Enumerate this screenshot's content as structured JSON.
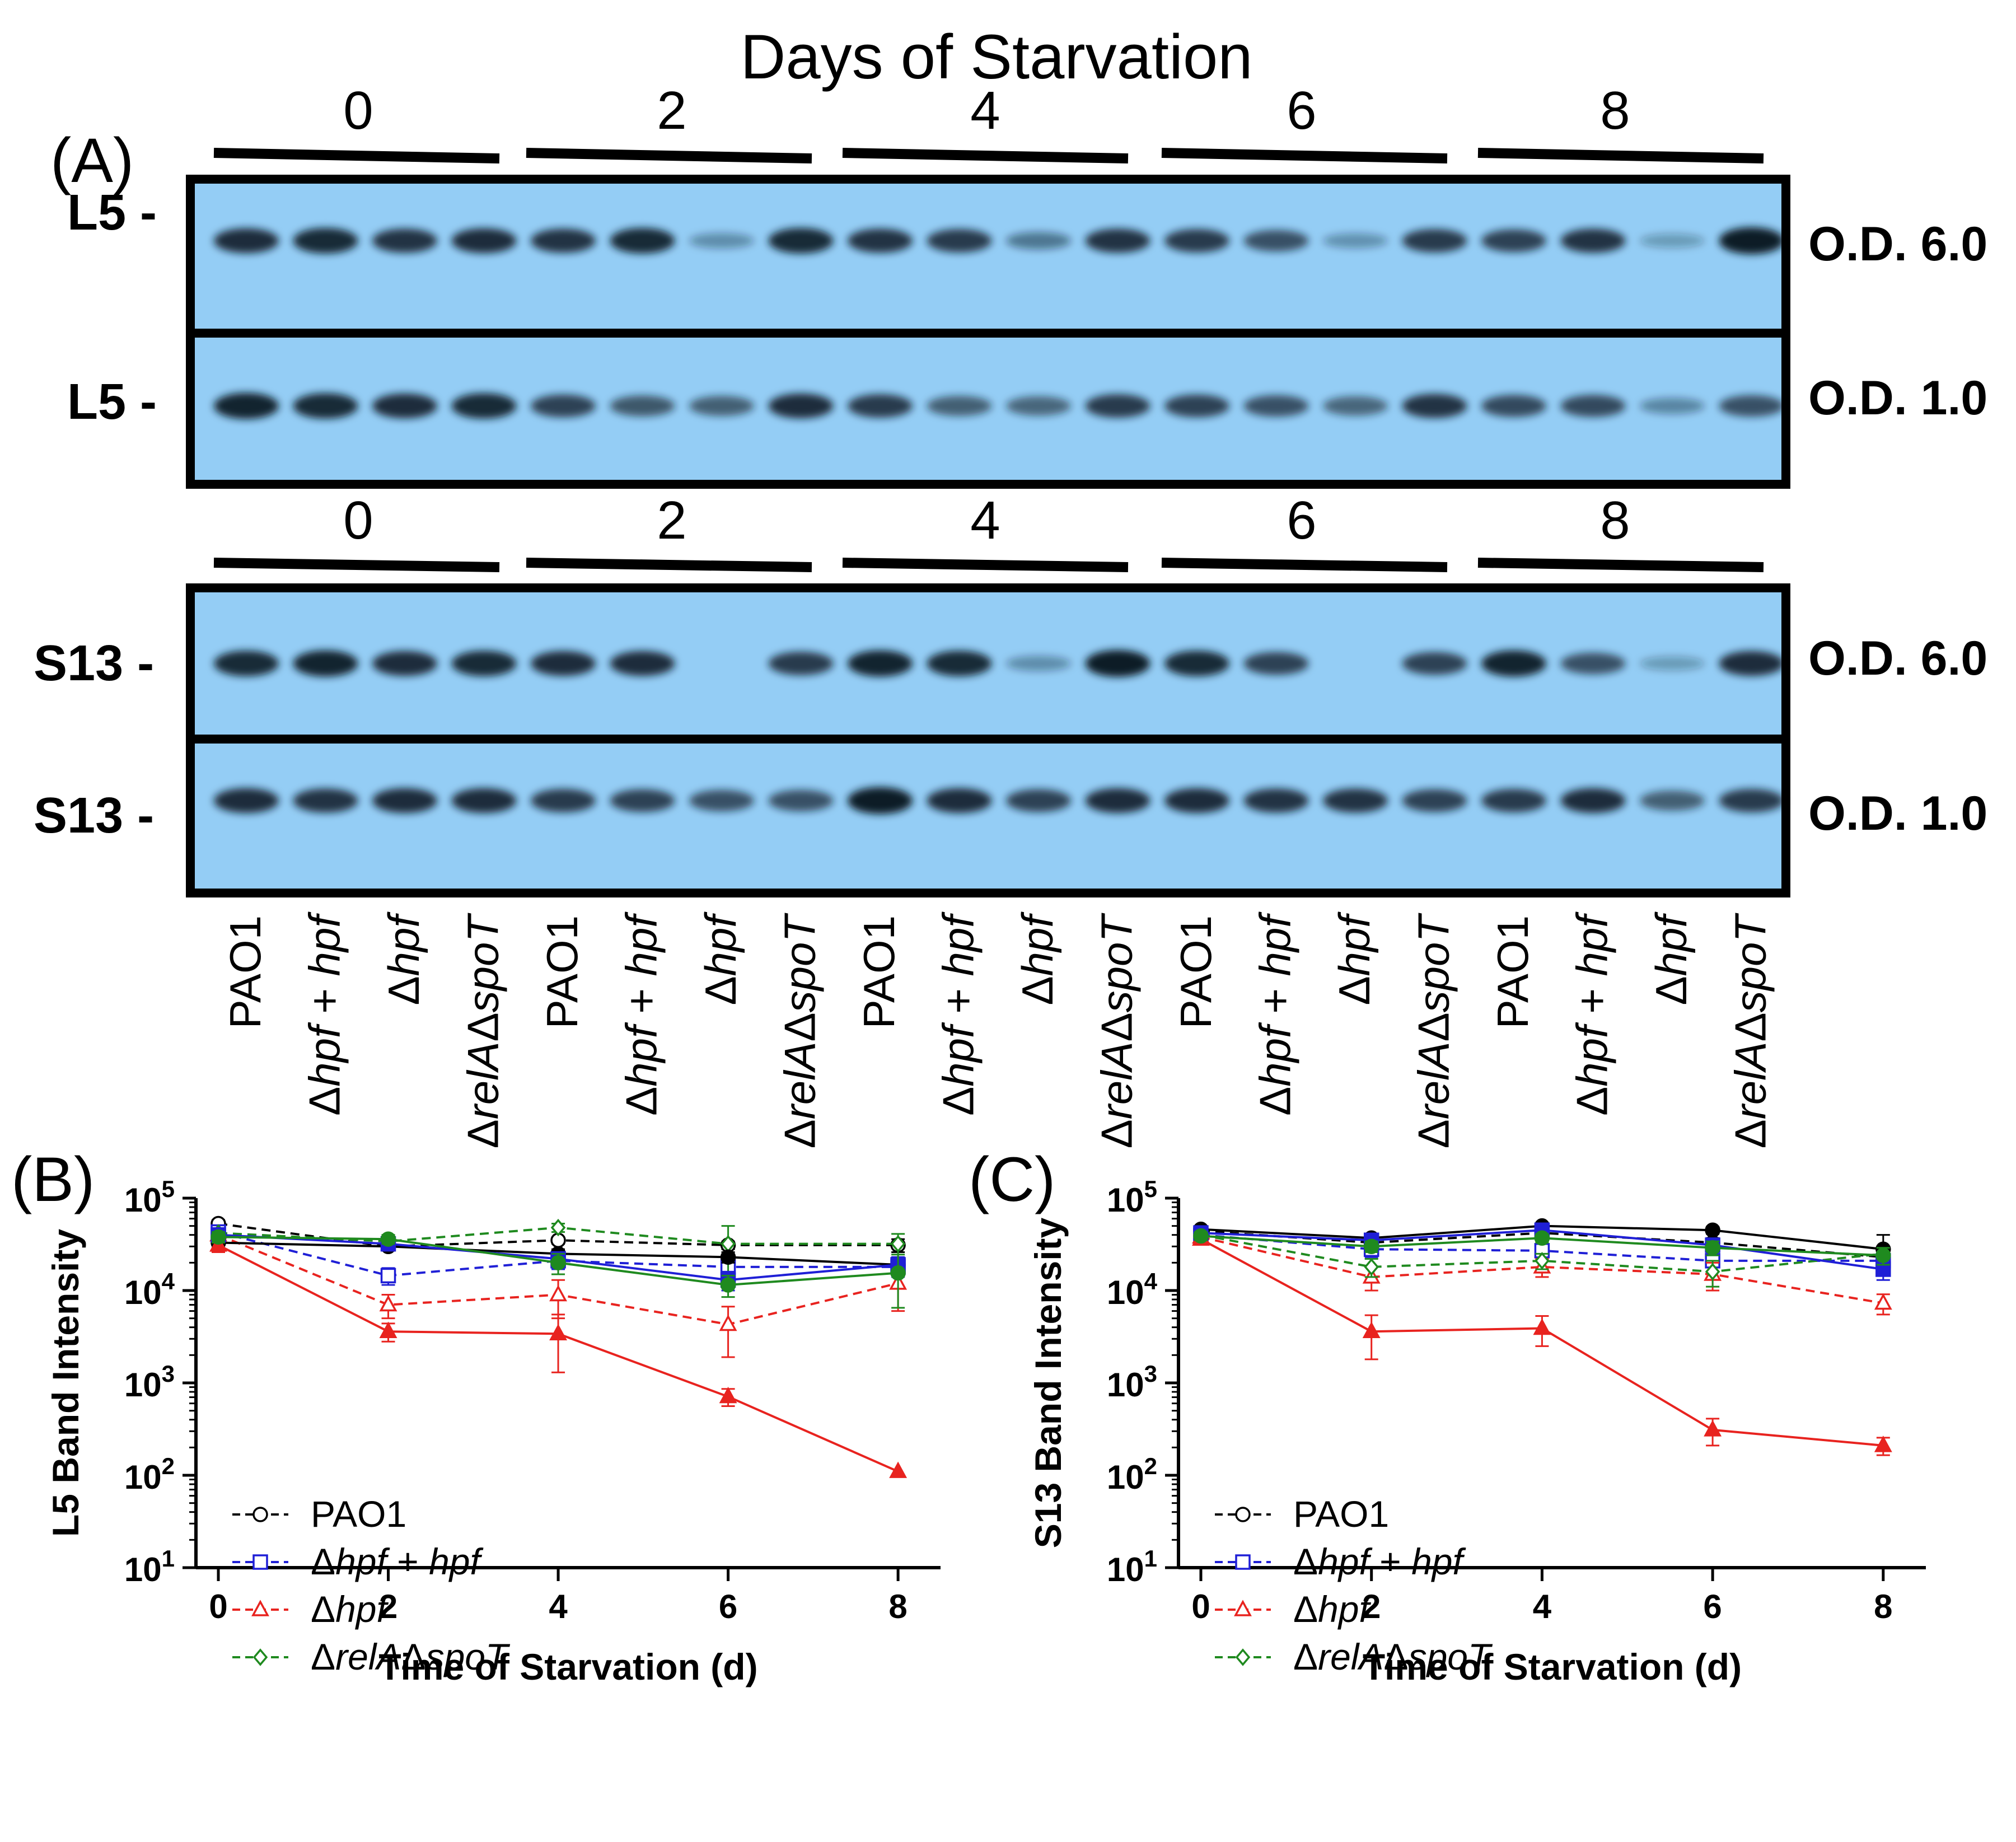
{
  "panel_a": {
    "label": "(A)",
    "title": "Days of Starvation",
    "days": [
      "0",
      "2",
      "4",
      "6",
      "8"
    ],
    "rows": [
      {
        "protein": "L5 -",
        "condition": "O.D. 6.0"
      },
      {
        "protein": "L5 -",
        "condition": "O.D. 1.0"
      },
      {
        "protein": "S13 -",
        "condition": "O.D. 6.0"
      },
      {
        "protein": "S13 -",
        "condition": "O.D. 1.0"
      }
    ],
    "lanes": [
      [
        {
          "t": "PAO1",
          "i": false
        }
      ],
      [
        {
          "t": "Δ",
          "i": false
        },
        {
          "t": "hpf",
          "i": true
        },
        {
          "t": " + ",
          "i": false
        },
        {
          "t": "hpf",
          "i": true
        }
      ],
      [
        {
          "t": "Δ",
          "i": false
        },
        {
          "t": "hpf",
          "i": true
        }
      ],
      [
        {
          "t": "Δ",
          "i": false
        },
        {
          "t": "relA",
          "i": true
        },
        {
          "t": "Δ",
          "i": false
        },
        {
          "t": "spoT",
          "i": true
        }
      ]
    ],
    "band_intensity": [
      [
        0.85,
        0.9,
        0.8,
        0.85,
        0.8,
        0.9,
        0.15,
        0.9,
        0.8,
        0.75,
        0.3,
        0.8,
        0.75,
        0.6,
        0.12,
        0.75,
        0.7,
        0.8,
        0.05,
        1.0
      ],
      [
        0.95,
        0.9,
        0.85,
        0.9,
        0.7,
        0.55,
        0.5,
        0.85,
        0.75,
        0.5,
        0.45,
        0.75,
        0.7,
        0.6,
        0.45,
        0.8,
        0.65,
        0.65,
        0.2,
        0.6
      ],
      [
        0.9,
        0.95,
        0.85,
        0.9,
        0.85,
        0.85,
        0.0,
        0.75,
        0.95,
        0.9,
        0.15,
        1.0,
        0.9,
        0.7,
        0.0,
        0.7,
        0.95,
        0.6,
        0.05,
        0.85
      ],
      [
        0.85,
        0.8,
        0.85,
        0.85,
        0.75,
        0.7,
        0.6,
        0.6,
        1.0,
        0.85,
        0.7,
        0.85,
        0.85,
        0.8,
        0.8,
        0.7,
        0.75,
        0.85,
        0.5,
        0.75
      ]
    ]
  },
  "legend_entries": [
    {
      "parts": [
        {
          "t": "PAO1",
          "i": false
        }
      ]
    },
    {
      "parts": [
        {
          "t": "Δ",
          "i": false
        },
        {
          "t": "hpf",
          "i": true
        },
        {
          "t": " + ",
          "i": false
        },
        {
          "t": "hpf",
          "i": true
        }
      ]
    },
    {
      "parts": [
        {
          "t": "Δ",
          "i": false
        },
        {
          "t": "hpf",
          "i": true
        }
      ]
    },
    {
      "parts": [
        {
          "t": "Δ",
          "i": false
        },
        {
          "t": "relA",
          "i": true
        },
        {
          "t": "Δ",
          "i": false
        },
        {
          "t": "spoT",
          "i": true
        }
      ]
    }
  ],
  "colors": {
    "blot_bg": "#94cdf5",
    "band": "#0d1b26",
    "PAO1": "#000000",
    "hpf_complement": "#1f1fd6",
    "delta_hpf": "#e8231f",
    "relA_spoT": "#1f8a1f"
  },
  "chart_data": [
    {
      "panel": "(B)",
      "type": "line",
      "yscale": "log",
      "xlabel": "Time of Starvation (d)",
      "ylabel": "L5  Band Intensity",
      "x": [
        0,
        2,
        4,
        6,
        8
      ],
      "xticks": [
        "0",
        "2",
        "4",
        "6",
        "8"
      ],
      "xlim": [
        0,
        8.5
      ],
      "ylim": [
        10,
        100000
      ],
      "yticks": [
        10,
        100,
        1000,
        10000,
        100000
      ],
      "legend_position": "bottom-left",
      "series": [
        {
          "name": "PAO1",
          "strain": "PAO1",
          "style": "dashed",
          "marker": "circle",
          "fill": "open",
          "values": [
            53000,
            30000,
            35000,
            31000,
            31000
          ],
          "err": [
            5000,
            3000,
            3000,
            3000,
            5000
          ]
        },
        {
          "name": "PAO1",
          "strain": "PAO1",
          "style": "solid",
          "marker": "circle",
          "fill": "filled",
          "values": [
            33000,
            30000,
            25000,
            23000,
            19000
          ],
          "err": [
            4000,
            3000,
            3000,
            3000,
            3000
          ]
        },
        {
          "name": "Δhpf + hpf",
          "strain": "hpf_complement",
          "style": "dashed",
          "marker": "square",
          "fill": "open",
          "values": [
            43000,
            14500,
            21000,
            18000,
            18000
          ],
          "err": [
            5000,
            3000,
            4000,
            5000,
            4000
          ]
        },
        {
          "name": "Δhpf + hpf",
          "strain": "hpf_complement",
          "style": "solid",
          "marker": "square",
          "fill": "filled",
          "values": [
            40000,
            32000,
            22000,
            13000,
            19000
          ],
          "err": [
            5000,
            4000,
            4000,
            3000,
            4000
          ]
        },
        {
          "name": "Δhpf",
          "strain": "delta_hpf",
          "style": "dashed",
          "marker": "triangle",
          "fill": "open",
          "values": [
            40000,
            7000,
            9000,
            4300,
            12000
          ],
          "err": [
            6000,
            2000,
            4000,
            2400,
            6000
          ]
        },
        {
          "name": "Δhpf",
          "strain": "delta_hpf",
          "style": "solid",
          "marker": "triangle",
          "fill": "filled",
          "values": [
            31000,
            3600,
            3400,
            710,
            110
          ],
          "err": [
            5000,
            800,
            2100,
            150,
            0
          ]
        },
        {
          "name": "ΔrelAΔspoT",
          "strain": "relA_spoT",
          "style": "dashed",
          "marker": "diamond",
          "fill": "open",
          "values": [
            42000,
            34000,
            48000,
            32000,
            32000
          ],
          "err": [
            5000,
            5000,
            5000,
            18000,
            9000
          ]
        },
        {
          "name": "ΔrelAΔspoT",
          "strain": "relA_spoT",
          "style": "solid",
          "marker": "circle",
          "fill": "filled",
          "values": [
            38000,
            36000,
            20000,
            11500,
            15500
          ],
          "err": [
            5000,
            4000,
            5000,
            3000,
            9000
          ]
        }
      ]
    },
    {
      "panel": "(C)",
      "type": "line",
      "yscale": "log",
      "xlabel": "Time of Starvation (d)",
      "ylabel": "S13  Band Intensity",
      "x": [
        0,
        2,
        4,
        6,
        8
      ],
      "xticks": [
        "0",
        "2",
        "4",
        "6",
        "8"
      ],
      "xlim": [
        0,
        8.5
      ],
      "ylim": [
        10,
        100000
      ],
      "yticks": [
        10,
        100,
        1000,
        10000,
        100000
      ],
      "legend_position": "bottom-left",
      "series": [
        {
          "name": "PAO1",
          "strain": "PAO1",
          "style": "dashed",
          "marker": "circle",
          "fill": "open",
          "values": [
            44000,
            33000,
            42000,
            33000,
            23000
          ],
          "err": [
            4000,
            4000,
            4000,
            4000,
            5000
          ]
        },
        {
          "name": "PAO1",
          "strain": "PAO1",
          "style": "solid",
          "marker": "circle",
          "fill": "filled",
          "values": [
            46000,
            37000,
            50000,
            45000,
            28000
          ],
          "err": [
            4000,
            4000,
            4000,
            4000,
            12000
          ]
        },
        {
          "name": "Δhpf + hpf",
          "strain": "hpf_complement",
          "style": "dashed",
          "marker": "square",
          "fill": "open",
          "values": [
            40000,
            28000,
            27000,
            21000,
            21000
          ],
          "err": [
            4000,
            5000,
            5000,
            5000,
            5000
          ]
        },
        {
          "name": "Δhpf + hpf",
          "strain": "hpf_complement",
          "style": "solid",
          "marker": "square",
          "fill": "filled",
          "values": [
            42000,
            35000,
            45000,
            31000,
            17000
          ],
          "err": [
            4000,
            5000,
            5000,
            5000,
            4000
          ]
        },
        {
          "name": "Δhpf",
          "strain": "delta_hpf",
          "style": "dashed",
          "marker": "triangle",
          "fill": "open",
          "values": [
            38000,
            14000,
            18000,
            15000,
            7300
          ],
          "err": [
            5000,
            4000,
            4000,
            5000,
            1800
          ]
        },
        {
          "name": "Δhpf",
          "strain": "delta_hpf",
          "style": "solid",
          "marker": "triangle",
          "fill": "filled",
          "values": [
            36000,
            3600,
            3900,
            310,
            210
          ],
          "err": [
            4000,
            1800,
            1400,
            100,
            45
          ]
        },
        {
          "name": "ΔrelAΔspoT",
          "strain": "relA_spoT",
          "style": "dashed",
          "marker": "diamond",
          "fill": "open",
          "values": [
            40000,
            18000,
            21000,
            16000,
            25000
          ],
          "err": [
            4000,
            4000,
            4000,
            5000,
            5000
          ]
        },
        {
          "name": "ΔrelAΔspoT",
          "strain": "relA_spoT",
          "style": "solid",
          "marker": "circle",
          "fill": "filled",
          "values": [
            39000,
            30000,
            37000,
            29000,
            24000
          ],
          "err": [
            4000,
            4000,
            4000,
            5000,
            5000
          ]
        }
      ]
    }
  ]
}
